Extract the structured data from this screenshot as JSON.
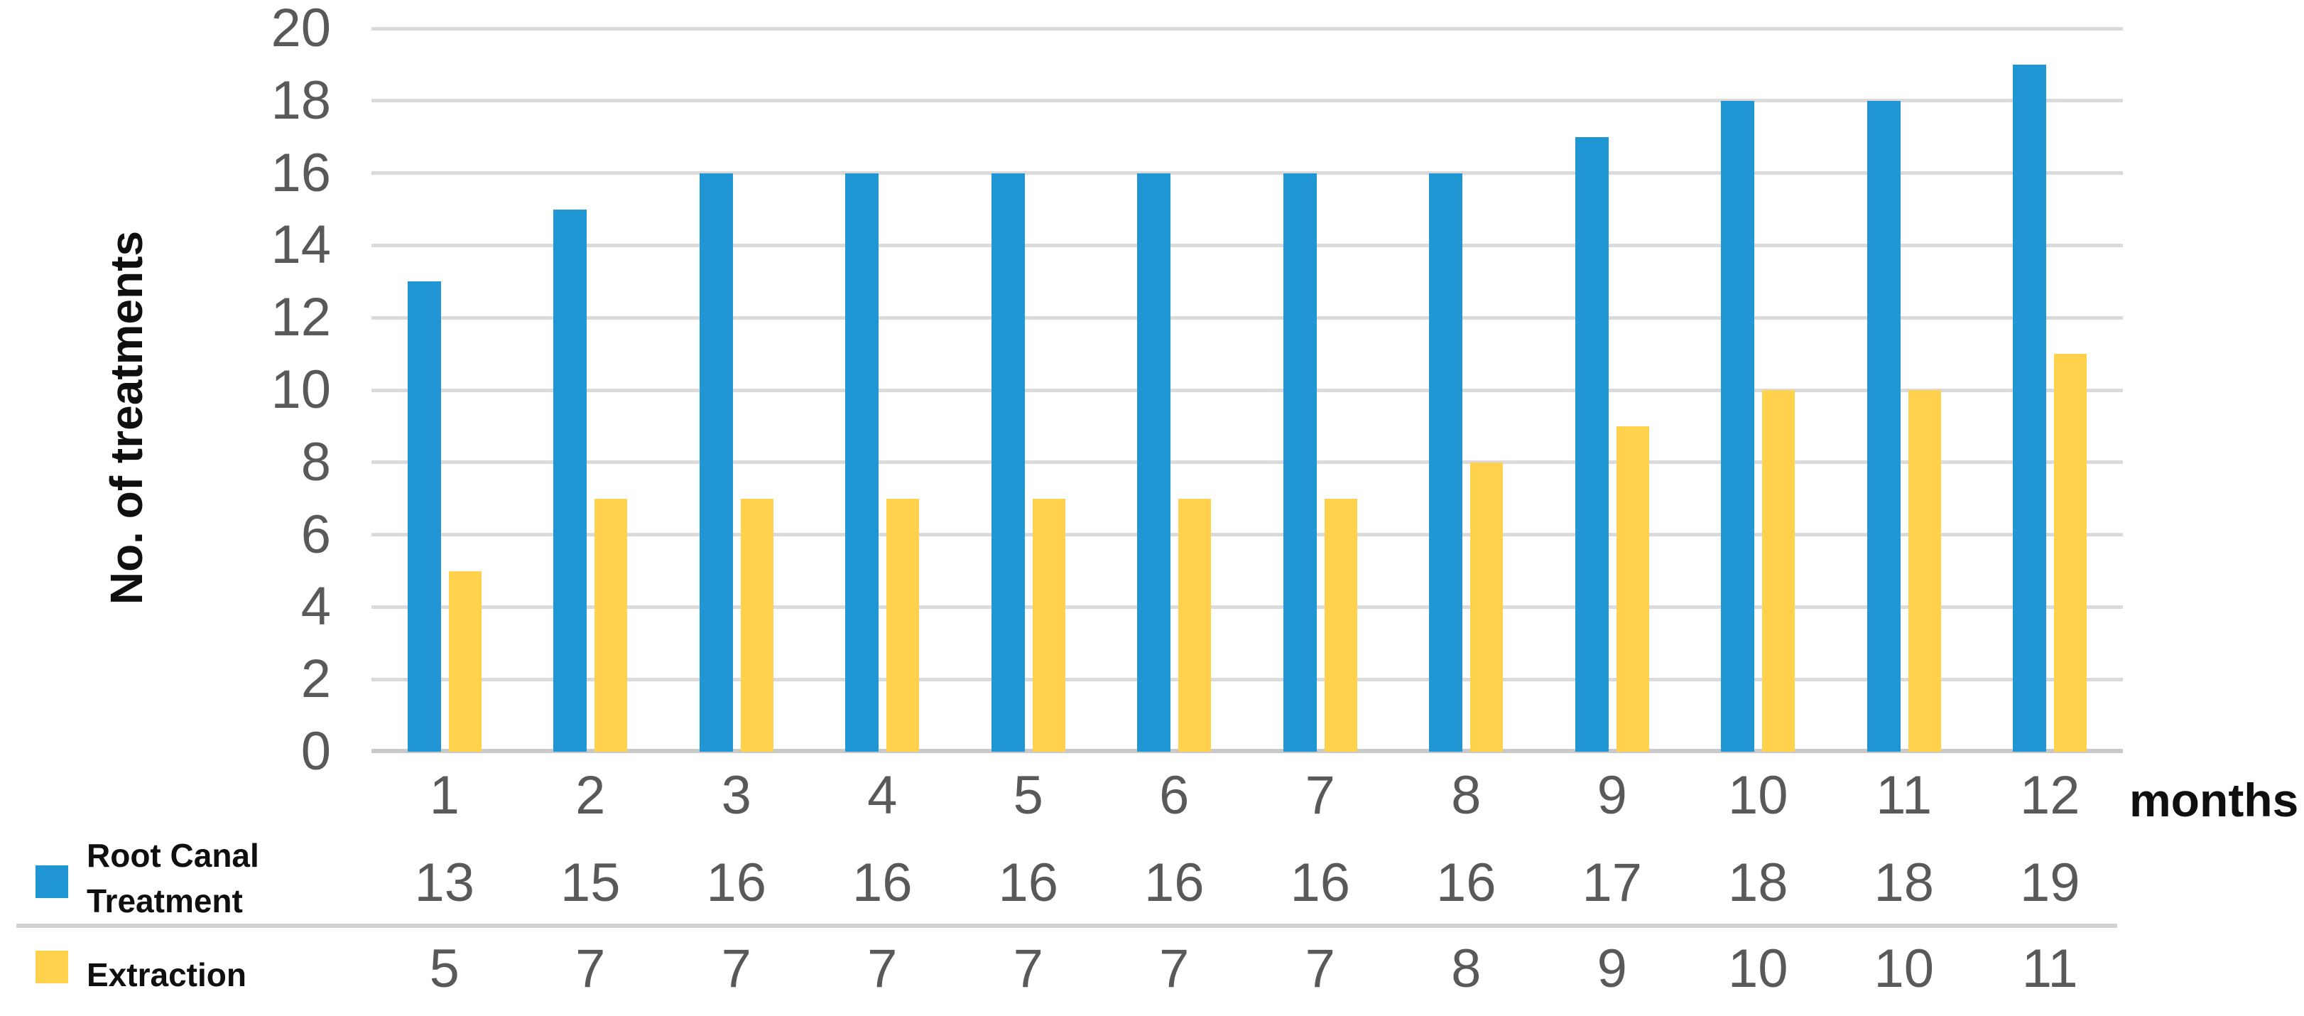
{
  "chart_data": {
    "type": "bar",
    "title": "",
    "xlabel": "months",
    "ylabel": "No. of treatments",
    "categories": [
      "1",
      "2",
      "3",
      "4",
      "5",
      "6",
      "7",
      "8",
      "9",
      "10",
      "11",
      "12"
    ],
    "series": [
      {
        "name": "Root Canal Treatment",
        "color": "#2096d5",
        "values": [
          13,
          15,
          16,
          16,
          16,
          16,
          16,
          16,
          17,
          18,
          18,
          19
        ]
      },
      {
        "name": "Extraction",
        "color": "#ffd14c",
        "values": [
          5,
          7,
          7,
          7,
          7,
          7,
          7,
          8,
          9,
          10,
          10,
          11
        ]
      }
    ],
    "ylim": [
      0,
      20
    ],
    "yticks": [
      0,
      2,
      4,
      6,
      8,
      10,
      12,
      14,
      16,
      18,
      20
    ],
    "grid": true,
    "gridline_color": "#dadada",
    "axis_line_color": "#c9c9c9",
    "tick_text_color": "#595959",
    "legend_position": "bottom-left",
    "data_table_shown": true
  }
}
